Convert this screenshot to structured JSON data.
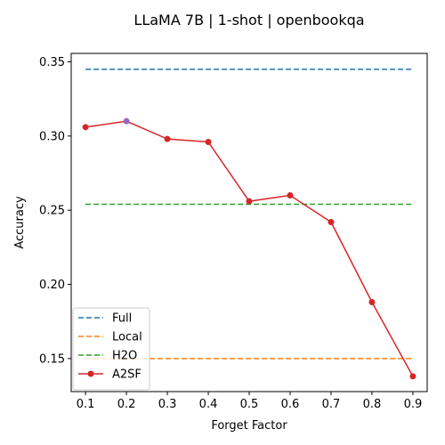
{
  "chart_data": {
    "type": "line",
    "title": "LLaMA 7B | 1-shot | openbookqa",
    "xlabel": "Forget Factor",
    "ylabel": "Accuracy",
    "x": [
      0.1,
      0.2,
      0.3,
      0.4,
      0.5,
      0.6,
      0.7,
      0.8,
      0.9
    ],
    "x_tick_labels": [
      "0.1",
      "0.2",
      "0.3",
      "0.4",
      "0.5",
      "0.6",
      "0.7",
      "0.8",
      "0.9"
    ],
    "y_ticks": [
      0.15,
      0.2,
      0.25,
      0.3,
      0.35
    ],
    "y_tick_labels": [
      "0.15",
      "0.20",
      "0.25",
      "0.30",
      "0.35"
    ],
    "xlim": [
      0.065,
      0.935
    ],
    "ylim": [
      0.1277,
      0.3557
    ],
    "grid": false,
    "legend_position": "lower-left",
    "baselines": [
      {
        "name": "Full",
        "value": 0.345,
        "color": "#1f77b4",
        "style": "dashed"
      },
      {
        "name": "Local",
        "value": 0.15,
        "color": "#ff7f0e",
        "style": "dashed"
      },
      {
        "name": "H2O",
        "value": 0.254,
        "color": "#2ca02c",
        "style": "dashed"
      }
    ],
    "series": [
      {
        "name": "A2SF",
        "color": "#d62728",
        "marker": "circle",
        "values": [
          0.306,
          0.31,
          0.298,
          0.296,
          0.256,
          0.26,
          0.242,
          0.188,
          0.138
        ],
        "highlight_index": 1,
        "highlight_color": "#9467bd"
      }
    ]
  }
}
